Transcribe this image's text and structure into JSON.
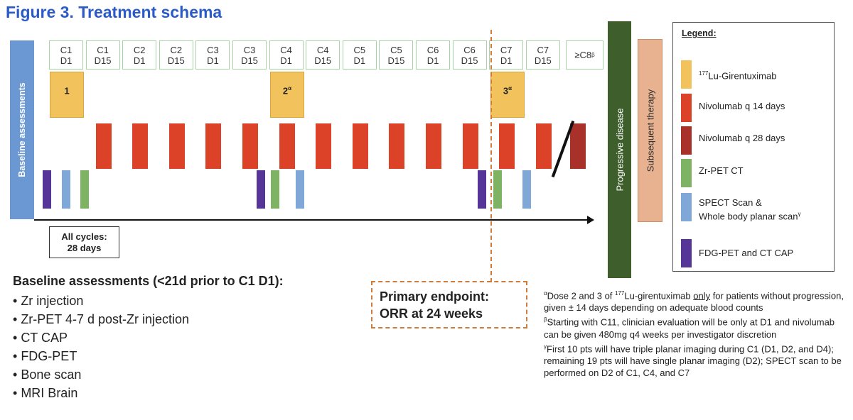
{
  "title": "Figure 3. Treatment schema",
  "baseline_bar_label": "Baseline assessments",
  "cycles": [
    {
      "c": "C1",
      "d": "D1"
    },
    {
      "c": "C1",
      "d": "D15"
    },
    {
      "c": "C2",
      "d": "D1"
    },
    {
      "c": "C2",
      "d": "D15"
    },
    {
      "c": "C3",
      "d": "D1"
    },
    {
      "c": "C3",
      "d": "D15"
    },
    {
      "c": "C4",
      "d": "D1"
    },
    {
      "c": "C4",
      "d": "D15"
    },
    {
      "c": "C5",
      "d": "D1"
    },
    {
      "c": "C5",
      "d": "D15"
    },
    {
      "c": "C6",
      "d": "D1"
    },
    {
      "c": "C6",
      "d": "D15"
    },
    {
      "c": "C7",
      "d": "D1"
    },
    {
      "c": "C7",
      "d": "D15"
    }
  ],
  "last_cycle": {
    "label": "≥C8",
    "sup": "β"
  },
  "lu_doses": [
    {
      "label": "1",
      "sup": ""
    },
    {
      "label": "2",
      "sup": "α"
    },
    {
      "label": "3",
      "sup": "α"
    }
  ],
  "cycles_note": {
    "line1": "All cycles:",
    "line2": "28 days"
  },
  "primary_endpoint": {
    "line1": "Primary endpoint:",
    "line2": "ORR at 24 weeks"
  },
  "progressive_disease": "Progressive disease",
  "subsequent_therapy": "Subsequent therapy",
  "legend": {
    "title": "Legend:",
    "items": [
      {
        "sup": "177",
        "label": "Lu-Girentuximab",
        "color": "#f2c35d"
      },
      {
        "label": "Nivolumab q 14 days",
        "color": "#dc4228"
      },
      {
        "label": "Nivolumab q 28 days",
        "color": "#a8322a"
      },
      {
        "label": "Zr-PET CT",
        "color": "#7db363"
      },
      {
        "label": "SPECT Scan &",
        "label2": "Whole body planar scan",
        "sup2": "γ",
        "color": "#7fa8d8"
      },
      {
        "label": "FDG-PET and CT CAP",
        "color": "#553597"
      }
    ]
  },
  "baseline_assessments": {
    "heading": "Baseline assessments (<21d prior to C1 D1):",
    "items": [
      "Zr injection",
      "Zr-PET 4-7 d post-Zr injection",
      "CT CAP",
      "FDG-PET",
      "Bone scan",
      "MRI Brain"
    ]
  },
  "footnotes": {
    "alpha": {
      "mark": "α",
      "pre": "Dose 2 and 3 of ",
      "sup": "177",
      "mid": "Lu-girentuximab ",
      "underline": "only",
      "post": " for patients without progression, given ± 14 days depending on adequate blood counts"
    },
    "beta": {
      "mark": "β",
      "text": "Starting with C11, clinician evaluation will be only at D1 and nivolumab can be given 480mg q4 weeks per investigator discretion"
    },
    "gamma": {
      "mark": "γ",
      "text": "First 10 pts will have triple planar imaging during C1 (D1, D2, and D4); remaining 19 pts will have single planar imaging (D2); SPECT scan to be performed on D2 of C1, C4, and C7"
    }
  }
}
